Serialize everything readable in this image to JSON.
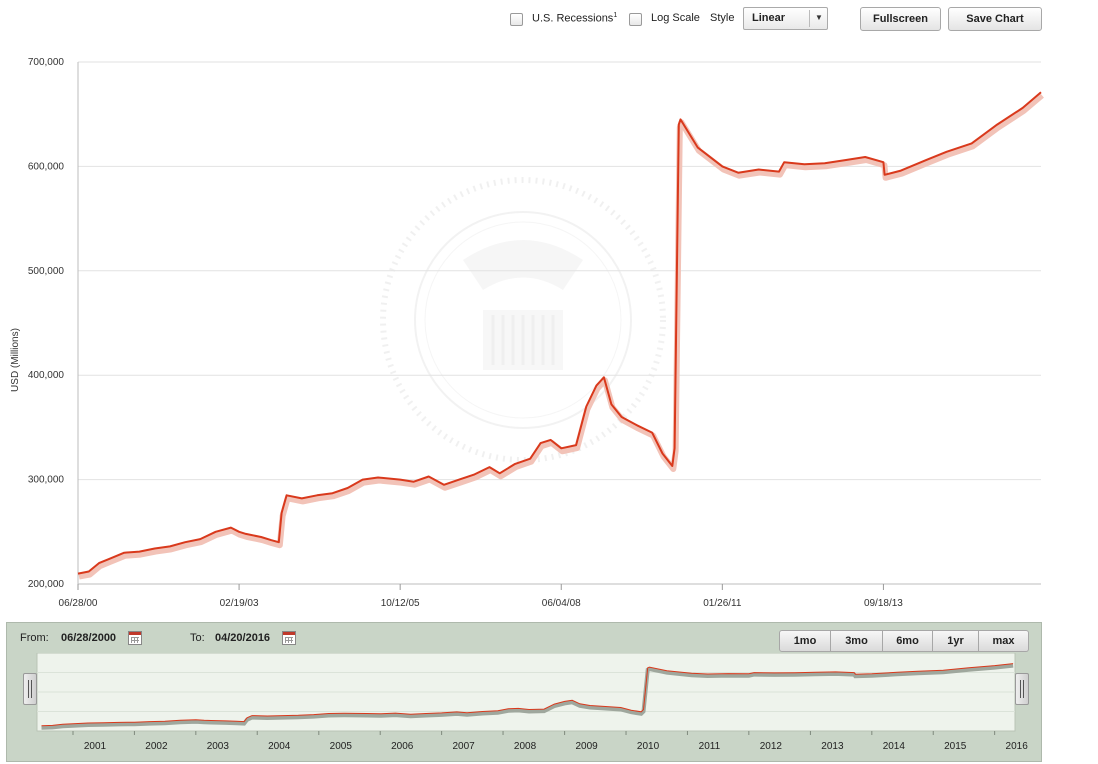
{
  "controls": {
    "recessions_label": "U.S. Recessions",
    "recessions_sup": "1",
    "logscale_label": "Log Scale",
    "style_label": "Style",
    "style_value": "Linear",
    "fullscreen_label": "Fullscreen",
    "save_label": "Save Chart"
  },
  "navigator": {
    "from_label": "From:",
    "from_value": "06/28/2000",
    "to_label": "To:",
    "to_value": "04/20/2016",
    "range_buttons": [
      "1mo",
      "3mo",
      "6mo",
      "1yr",
      "max"
    ],
    "year_labels": [
      "2001",
      "2002",
      "2003",
      "2004",
      "2005",
      "2006",
      "2007",
      "2008",
      "2009",
      "2010",
      "2011",
      "2012",
      "2013",
      "2014",
      "2015",
      "2016"
    ]
  },
  "chart_data": {
    "type": "line",
    "title": "",
    "xlabel": "",
    "ylabel": "USD (Millions)",
    "ylim": [
      200000,
      700000
    ],
    "xlim": [
      "2000-06-28",
      "2016-04-20"
    ],
    "yticks": [
      200000,
      300000,
      400000,
      500000,
      600000,
      700000
    ],
    "ytick_labels": [
      "200,000",
      "300,000",
      "400,000",
      "500,000",
      "600,000",
      "700,000"
    ],
    "xticks": [
      "2000-06-28",
      "2003-02-19",
      "2005-10-12",
      "2008-06-04",
      "2011-01-26",
      "2013-09-18"
    ],
    "xtick_labels": [
      "06/28/00",
      "02/19/03",
      "10/12/05",
      "06/04/08",
      "01/26/11",
      "09/18/13"
    ],
    "grid": true,
    "line_color": "#d9391c",
    "series": [
      {
        "name": "",
        "points": [
          [
            "2000-06-28",
            210000
          ],
          [
            "2000-09-01",
            212000
          ],
          [
            "2000-11-01",
            220000
          ],
          [
            "2001-01-01",
            224000
          ],
          [
            "2001-04-01",
            230000
          ],
          [
            "2001-07-01",
            231000
          ],
          [
            "2001-10-01",
            234000
          ],
          [
            "2002-01-01",
            236000
          ],
          [
            "2002-04-01",
            240000
          ],
          [
            "2002-07-01",
            243000
          ],
          [
            "2002-10-01",
            250000
          ],
          [
            "2003-01-01",
            254000
          ],
          [
            "2003-02-19",
            250000
          ],
          [
            "2003-04-01",
            248000
          ],
          [
            "2003-07-01",
            245000
          ],
          [
            "2003-09-01",
            242000
          ],
          [
            "2003-10-15",
            240000
          ],
          [
            "2003-11-01",
            268000
          ],
          [
            "2003-12-01",
            285000
          ],
          [
            "2004-03-01",
            282000
          ],
          [
            "2004-06-01",
            285000
          ],
          [
            "2004-09-01",
            287000
          ],
          [
            "2004-12-01",
            292000
          ],
          [
            "2005-03-01",
            300000
          ],
          [
            "2005-06-01",
            302000
          ],
          [
            "2005-10-12",
            300000
          ],
          [
            "2006-01-01",
            298000
          ],
          [
            "2006-04-01",
            303000
          ],
          [
            "2006-07-01",
            295000
          ],
          [
            "2006-10-01",
            300000
          ],
          [
            "2007-01-01",
            305000
          ],
          [
            "2007-04-01",
            312000
          ],
          [
            "2007-06-01",
            306000
          ],
          [
            "2007-09-01",
            315000
          ],
          [
            "2007-12-01",
            320000
          ],
          [
            "2008-02-01",
            335000
          ],
          [
            "2008-04-01",
            338000
          ],
          [
            "2008-06-04",
            330000
          ],
          [
            "2008-09-01",
            333000
          ],
          [
            "2008-11-01",
            370000
          ],
          [
            "2009-01-01",
            390000
          ],
          [
            "2009-02-15",
            398000
          ],
          [
            "2009-04-01",
            372000
          ],
          [
            "2009-06-01",
            360000
          ],
          [
            "2009-09-01",
            352000
          ],
          [
            "2009-12-01",
            345000
          ],
          [
            "2010-02-01",
            325000
          ],
          [
            "2010-04-01",
            313000
          ],
          [
            "2010-04-15",
            330000
          ],
          [
            "2010-05-10",
            640000
          ],
          [
            "2010-05-20",
            645000
          ],
          [
            "2010-09-01",
            618000
          ],
          [
            "2011-01-26",
            600000
          ],
          [
            "2011-05-01",
            594000
          ],
          [
            "2011-09-01",
            597000
          ],
          [
            "2012-01-01",
            595000
          ],
          [
            "2012-02-01",
            604000
          ],
          [
            "2012-06-01",
            602000
          ],
          [
            "2012-10-01",
            603000
          ],
          [
            "2013-02-01",
            606000
          ],
          [
            "2013-06-01",
            609000
          ],
          [
            "2013-09-18",
            604000
          ],
          [
            "2013-09-25",
            592000
          ],
          [
            "2014-01-01",
            596000
          ],
          [
            "2014-06-01",
            606000
          ],
          [
            "2014-10-01",
            614000
          ],
          [
            "2015-03-01",
            622000
          ],
          [
            "2015-08-01",
            640000
          ],
          [
            "2016-01-01",
            656000
          ],
          [
            "2016-04-20",
            671000
          ]
        ]
      }
    ]
  }
}
